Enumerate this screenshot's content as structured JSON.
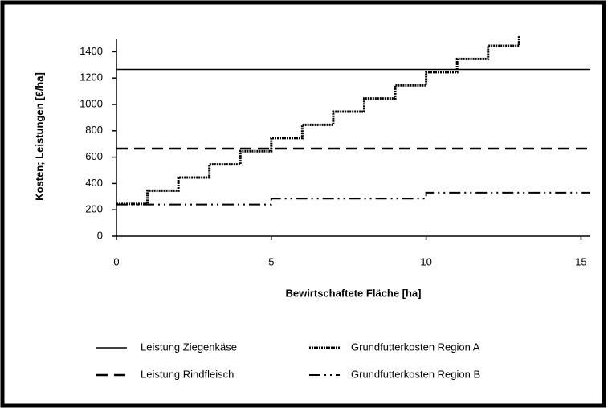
{
  "chart_data": {
    "type": "line",
    "xlabel": "Bewirtschaftete Fläche [ha]",
    "ylabel": "Kosten; Leistungen [€/ha]",
    "xlim": [
      0,
      15.3
    ],
    "xticks": [
      0,
      5,
      10,
      15
    ],
    "ylim": [
      0,
      1500
    ],
    "yticks": [
      0,
      200,
      400,
      600,
      800,
      1000,
      1200,
      1400
    ],
    "grid": false,
    "legend": "bottom",
    "series": [
      {
        "name": "Leistung Ziegenkäse",
        "color": "#000000",
        "style": "solid",
        "x": [
          0,
          15.3
        ],
        "values": [
          1265,
          1265
        ]
      },
      {
        "name": "Grundfutterkosten Region A",
        "color": "#000000",
        "style": "dotted",
        "x": [
          0,
          1,
          1,
          2,
          2,
          3,
          3,
          4,
          4,
          5,
          5,
          6,
          6,
          7,
          7,
          8,
          8,
          9,
          9,
          10,
          10,
          11,
          11,
          12,
          12,
          13,
          13
        ],
        "values": [
          245,
          245,
          345,
          345,
          445,
          445,
          545,
          545,
          645,
          645,
          745,
          745,
          845,
          845,
          945,
          945,
          1045,
          1045,
          1145,
          1145,
          1245,
          1245,
          1345,
          1345,
          1445,
          1445,
          1525
        ]
      },
      {
        "name": "Leistung Rindfleisch",
        "color": "#000000",
        "style": "dashed",
        "x": [
          0,
          15.3
        ],
        "values": [
          665,
          665
        ]
      },
      {
        "name": "Grundfutterkosten Region B",
        "color": "#000000",
        "style": "dashdot",
        "x": [
          0,
          5,
          5,
          10,
          10,
          15.3
        ],
        "values": [
          240,
          240,
          285,
          285,
          330,
          330
        ]
      }
    ]
  }
}
